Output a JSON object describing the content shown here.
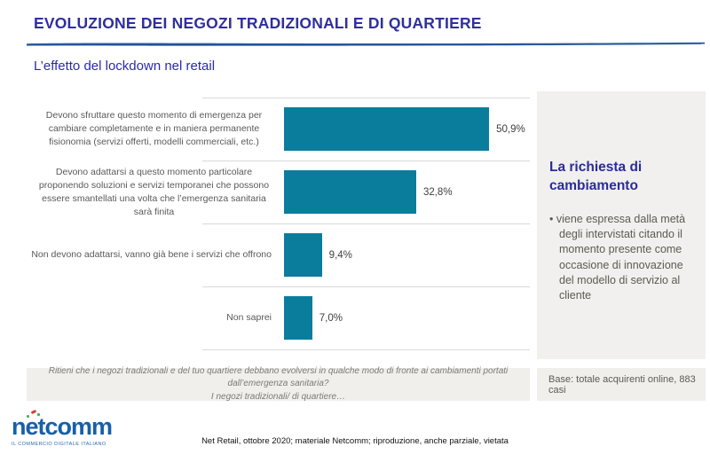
{
  "header": {
    "title": "EVOLUZIONE DEI NEGOZI TRADIZIONALI E DI QUARTIERE",
    "subtitle": "L’effetto del lockdown nel retail"
  },
  "chart_data": {
    "type": "bar",
    "orientation": "horizontal",
    "title": "L’effetto del lockdown nel retail",
    "categories": [
      "Devono sfruttare questo momento di emergenza per cambiare completamente e in maniera permanente fisionomia (servizi offerti, modelli commerciali, etc.)",
      "Devono adattarsi a questo momento particolare proponendo soluzioni e servizi temporanei che possono essere smantellati una volta che l’emergenza sanitaria sarà finita",
      "Non devono adattarsi, vanno già bene i servizi che offrono",
      "Non saprei"
    ],
    "values": [
      50.9,
      32.8,
      9.4,
      7.0
    ],
    "value_labels": [
      "50,9%",
      "32,8%",
      "9,4%",
      "7,0%"
    ],
    "bar_color": "#0A7D9C",
    "xlim": [
      0,
      61
    ],
    "grid": "category-separator-lines",
    "legend": "none"
  },
  "side_panel": {
    "heading": "La richiesta di cambiamento",
    "bullet_mark": "•",
    "bullet": "viene espressa dalla metà degli intervistati citando il momento presente come occasione di innovazione del modello di servizio al cliente"
  },
  "question_note": {
    "line1": "Ritieni che i negozi tradizionali e del tuo quartiere debbano evolversi in qualche modo di fronte ai cambiamenti portati dall’emergenza sanitaria?",
    "line2": "I negozi tradizionali/ di quartiere…"
  },
  "base_note": "Base: totale acquirenti online, 883 casi",
  "logo": {
    "wordmark": "netcomm",
    "tagline": "IL COMMERCIO DIGITALE ITALIANO"
  },
  "footer": "Net Retail, ottobre 2020; materiale Netcomm; riproduzione, anche parziale, vietata",
  "colors": {
    "title_blue": "#2f2f9d",
    "subtitle_blue": "#2b2bab",
    "bar_teal": "#0A7D9C",
    "panel_gray": "#f1f0ee",
    "label_gray": "#595959",
    "logo_blue": "#185fa9",
    "swoosh_blue": "#2a5fa8"
  }
}
